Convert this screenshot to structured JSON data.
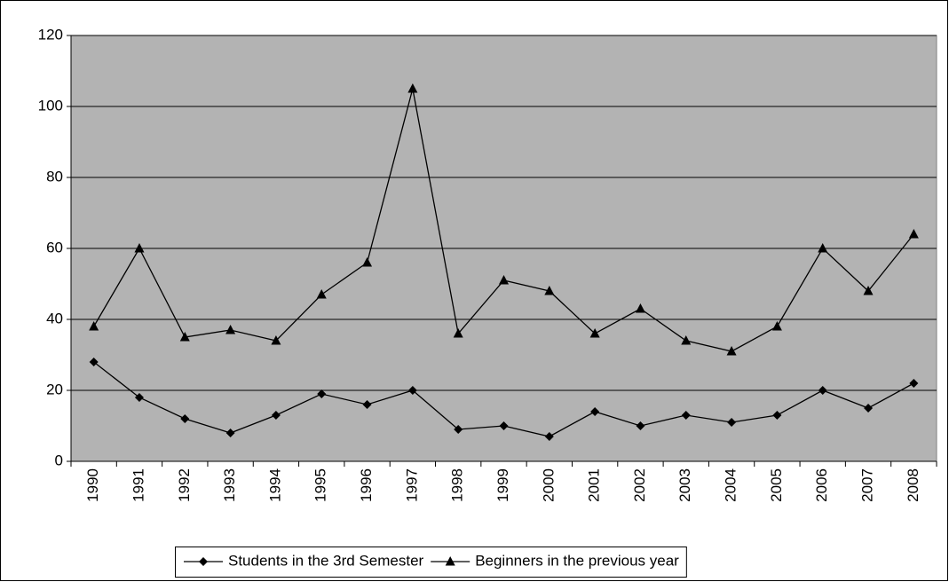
{
  "chart_data": {
    "type": "line",
    "categories": [
      "1990",
      "1991",
      "1992",
      "1993",
      "1994",
      "1995",
      "1996",
      "1997",
      "1998",
      "1999",
      "2000",
      "2001",
      "2002",
      "2003",
      "2004",
      "2005",
      "2006",
      "2007",
      "2008"
    ],
    "series": [
      {
        "name": "Students in the 3rd Semester",
        "color": "#000000",
        "marker": "diamond",
        "values": [
          28,
          18,
          12,
          8,
          13,
          19,
          16,
          20,
          9,
          10,
          7,
          14,
          10,
          13,
          11,
          13,
          20,
          15,
          22
        ]
      },
      {
        "name": "Beginners in the previous year",
        "color": "#000000",
        "marker": "triangle",
        "values": [
          38,
          60,
          35,
          37,
          34,
          47,
          56,
          105,
          36,
          51,
          48,
          36,
          43,
          34,
          31,
          38,
          60,
          48,
          64
        ]
      }
    ],
    "ylim": [
      0,
      120
    ],
    "yticks": [
      0,
      20,
      40,
      60,
      80,
      100,
      120
    ],
    "grid": true,
    "plot_background": "#b3b3b3",
    "legend": "bottom"
  }
}
